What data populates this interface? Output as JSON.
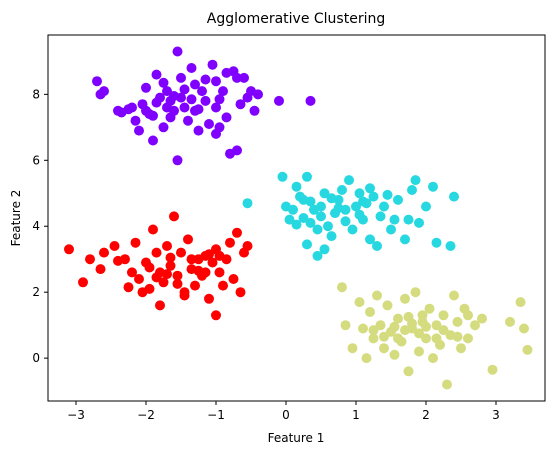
{
  "chart_data": {
    "type": "scatter",
    "title": "Agglomerative Clustering",
    "xlabel": "Feature 1",
    "ylabel": "Feature 2",
    "xlim": [
      -3.4,
      3.7
    ],
    "ylim": [
      -1.3,
      9.8
    ],
    "xticks": [
      -3,
      -2,
      -1,
      0,
      1,
      2,
      3
    ],
    "yticks": [
      0,
      2,
      4,
      6,
      8
    ],
    "grid": false,
    "legend": "none",
    "series": [
      {
        "color": "#8000ff",
        "points": [
          [
            -2.7,
            8.4
          ],
          [
            -2.65,
            8.0
          ],
          [
            -2.6,
            8.1
          ],
          [
            -2.4,
            7.5
          ],
          [
            -2.35,
            7.45
          ],
          [
            -2.2,
            7.6
          ],
          [
            -2.15,
            7.2
          ],
          [
            -2.1,
            6.9
          ],
          [
            -2.0,
            8.2
          ],
          [
            -2.0,
            7.5
          ],
          [
            -1.95,
            7.4
          ],
          [
            -1.9,
            6.6
          ],
          [
            -1.85,
            8.6
          ],
          [
            -1.8,
            7.9
          ],
          [
            -1.75,
            7.0
          ],
          [
            -1.7,
            8.1
          ],
          [
            -1.7,
            7.6
          ],
          [
            -1.65,
            7.8
          ],
          [
            -1.6,
            7.5
          ],
          [
            -1.55,
            9.3
          ],
          [
            -1.5,
            8.5
          ],
          [
            -1.5,
            7.9
          ],
          [
            -1.45,
            7.6
          ],
          [
            -1.4,
            7.2
          ],
          [
            -1.35,
            8.8
          ],
          [
            -1.3,
            8.3
          ],
          [
            -1.3,
            7.5
          ],
          [
            -1.25,
            6.9
          ],
          [
            -1.2,
            8.1
          ],
          [
            -1.15,
            7.8
          ],
          [
            -1.1,
            7.1
          ],
          [
            -1.05,
            8.9
          ],
          [
            -1.0,
            8.4
          ],
          [
            -1.0,
            7.6
          ],
          [
            -0.95,
            7.0
          ],
          [
            -0.9,
            8.1
          ],
          [
            -0.85,
            7.3
          ],
          [
            -0.8,
            6.2
          ],
          [
            -0.75,
            8.7
          ],
          [
            -0.7,
            8.5
          ],
          [
            -0.65,
            7.7
          ],
          [
            -0.6,
            8.5
          ],
          [
            -0.55,
            7.9
          ],
          [
            -0.5,
            8.1
          ],
          [
            -0.45,
            7.5
          ],
          [
            -0.4,
            8.0
          ],
          [
            -0.1,
            7.8
          ],
          [
            0.35,
            7.8
          ],
          [
            -1.55,
            6.0
          ],
          [
            -0.7,
            6.3
          ],
          [
            -1.85,
            7.75
          ],
          [
            -1.65,
            7.3
          ],
          [
            -1.25,
            7.55
          ],
          [
            -0.95,
            7.85
          ],
          [
            -2.05,
            7.7
          ],
          [
            -1.75,
            8.35
          ],
          [
            -1.45,
            8.15
          ],
          [
            -1.15,
            8.45
          ],
          [
            -0.85,
            8.65
          ],
          [
            -1.35,
            7.85
          ],
          [
            -1.6,
            7.95
          ],
          [
            -1.0,
            6.8
          ],
          [
            -2.25,
            7.55
          ],
          [
            -1.9,
            7.35
          ]
        ]
      },
      {
        "color": "#28d8e0",
        "points": [
          [
            -0.55,
            4.7
          ],
          [
            -0.05,
            5.5
          ],
          [
            0.0,
            4.6
          ],
          [
            0.05,
            4.2
          ],
          [
            0.1,
            4.5
          ],
          [
            0.15,
            5.2
          ],
          [
            0.2,
            4.9
          ],
          [
            0.25,
            4.8
          ],
          [
            0.3,
            5.5
          ],
          [
            0.35,
            4.1
          ],
          [
            0.4,
            4.5
          ],
          [
            0.45,
            3.1
          ],
          [
            0.45,
            3.9
          ],
          [
            0.5,
            4.3
          ],
          [
            0.5,
            4.6
          ],
          [
            0.55,
            5.0
          ],
          [
            0.55,
            3.3
          ],
          [
            0.6,
            4.0
          ],
          [
            0.65,
            3.7
          ],
          [
            0.7,
            4.4
          ],
          [
            0.75,
            4.8
          ],
          [
            0.8,
            5.1
          ],
          [
            0.85,
            4.5
          ],
          [
            0.9,
            5.4
          ],
          [
            0.95,
            3.9
          ],
          [
            1.0,
            4.6
          ],
          [
            1.05,
            5.0
          ],
          [
            1.1,
            4.2
          ],
          [
            1.15,
            4.7
          ],
          [
            1.2,
            3.6
          ],
          [
            1.25,
            4.9
          ],
          [
            1.3,
            3.4
          ],
          [
            1.35,
            4.3
          ],
          [
            1.4,
            4.6
          ],
          [
            1.5,
            3.9
          ],
          [
            1.55,
            4.2
          ],
          [
            1.6,
            4.8
          ],
          [
            1.7,
            3.6
          ],
          [
            1.75,
            4.2
          ],
          [
            1.8,
            5.1
          ],
          [
            1.85,
            5.4
          ],
          [
            1.9,
            4.1
          ],
          [
            2.0,
            4.6
          ],
          [
            2.1,
            5.2
          ],
          [
            2.15,
            3.5
          ],
          [
            2.35,
            3.4
          ],
          [
            2.4,
            4.9
          ],
          [
            0.3,
            3.45
          ],
          [
            0.15,
            4.05
          ],
          [
            0.65,
            4.85
          ],
          [
            0.85,
            4.15
          ],
          [
            1.05,
            4.35
          ],
          [
            1.2,
            5.15
          ],
          [
            1.45,
            4.95
          ],
          [
            0.35,
            4.75
          ],
          [
            0.75,
            4.55
          ],
          [
            1.1,
            4.75
          ],
          [
            0.25,
            4.25
          ]
        ]
      },
      {
        "color": "#ff0000",
        "points": [
          [
            -3.1,
            3.3
          ],
          [
            -2.9,
            2.3
          ],
          [
            -2.8,
            3.0
          ],
          [
            -2.65,
            2.7
          ],
          [
            -2.6,
            3.2
          ],
          [
            -2.45,
            3.4
          ],
          [
            -2.3,
            3.0
          ],
          [
            -2.2,
            2.6
          ],
          [
            -2.15,
            3.5
          ],
          [
            -2.1,
            2.4
          ],
          [
            -2.05,
            2.0
          ],
          [
            -2.0,
            2.9
          ],
          [
            -1.95,
            2.1
          ],
          [
            -1.9,
            3.9
          ],
          [
            -1.85,
            3.2
          ],
          [
            -1.8,
            2.6
          ],
          [
            -1.75,
            2.3
          ],
          [
            -1.7,
            3.4
          ],
          [
            -1.65,
            2.8
          ],
          [
            -1.6,
            4.3
          ],
          [
            -1.55,
            2.5
          ],
          [
            -1.5,
            3.2
          ],
          [
            -1.45,
            2.0
          ],
          [
            -1.4,
            3.6
          ],
          [
            -1.35,
            2.7
          ],
          [
            -1.3,
            2.2
          ],
          [
            -1.25,
            3.0
          ],
          [
            -1.2,
            2.5
          ],
          [
            -1.15,
            3.1
          ],
          [
            -1.1,
            1.8
          ],
          [
            -1.05,
            2.9
          ],
          [
            -1.0,
            3.3
          ],
          [
            -0.95,
            2.6
          ],
          [
            -0.9,
            2.2
          ],
          [
            -0.85,
            3.0
          ],
          [
            -0.8,
            3.5
          ],
          [
            -0.75,
            2.4
          ],
          [
            -0.7,
            3.8
          ],
          [
            -0.65,
            2.0
          ],
          [
            -0.6,
            3.2
          ],
          [
            -0.55,
            3.4
          ],
          [
            -1.8,
            1.6
          ],
          [
            -1.45,
            1.9
          ],
          [
            -1.0,
            1.3
          ],
          [
            -2.25,
            2.15
          ],
          [
            -1.95,
            2.75
          ],
          [
            -1.65,
            3.05
          ],
          [
            -1.35,
            3.0
          ],
          [
            -1.1,
            3.15
          ],
          [
            -1.25,
            2.65
          ],
          [
            -1.55,
            2.25
          ],
          [
            -2.4,
            2.95
          ],
          [
            -1.7,
            2.55
          ],
          [
            -1.85,
            2.45
          ],
          [
            -0.95,
            3.1
          ],
          [
            -1.15,
            2.6
          ]
        ]
      },
      {
        "color": "#d4dc7f",
        "points": [
          [
            0.8,
            2.15
          ],
          [
            0.85,
            1.0
          ],
          [
            0.95,
            0.3
          ],
          [
            1.05,
            1.7
          ],
          [
            1.1,
            0.9
          ],
          [
            1.15,
            0.0
          ],
          [
            1.2,
            1.4
          ],
          [
            1.25,
            0.6
          ],
          [
            1.3,
            1.9
          ],
          [
            1.35,
            1.0
          ],
          [
            1.4,
            0.3
          ],
          [
            1.45,
            1.6
          ],
          [
            1.5,
            0.8
          ],
          [
            1.55,
            0.1
          ],
          [
            1.6,
            1.2
          ],
          [
            1.65,
            0.5
          ],
          [
            1.7,
            1.8
          ],
          [
            1.75,
            -0.4
          ],
          [
            1.8,
            0.9
          ],
          [
            1.85,
            2.0
          ],
          [
            1.9,
            0.2
          ],
          [
            1.95,
            1.1
          ],
          [
            2.0,
            0.6
          ],
          [
            2.05,
            1.5
          ],
          [
            2.1,
            0.0
          ],
          [
            2.15,
            1.0
          ],
          [
            2.2,
            0.4
          ],
          [
            2.25,
            1.3
          ],
          [
            2.3,
            -0.8
          ],
          [
            2.35,
            0.7
          ],
          [
            2.4,
            1.9
          ],
          [
            2.45,
            1.1
          ],
          [
            2.5,
            0.3
          ],
          [
            2.55,
            1.5
          ],
          [
            2.6,
            0.6
          ],
          [
            2.7,
            1.0
          ],
          [
            2.8,
            1.2
          ],
          [
            2.95,
            -0.35
          ],
          [
            3.2,
            1.1
          ],
          [
            3.35,
            1.7
          ],
          [
            3.4,
            0.9
          ],
          [
            3.45,
            0.25
          ],
          [
            1.6,
            0.6
          ],
          [
            1.7,
            0.85
          ],
          [
            1.8,
            1.05
          ],
          [
            1.9,
            0.75
          ],
          [
            2.0,
            0.95
          ],
          [
            1.55,
            0.95
          ],
          [
            1.4,
            0.65
          ],
          [
            2.25,
            0.85
          ],
          [
            2.15,
            0.6
          ],
          [
            1.95,
            1.3
          ],
          [
            2.45,
            0.65
          ],
          [
            1.25,
            0.85
          ],
          [
            1.75,
            1.25
          ],
          [
            2.6,
            1.3
          ]
        ]
      }
    ]
  }
}
